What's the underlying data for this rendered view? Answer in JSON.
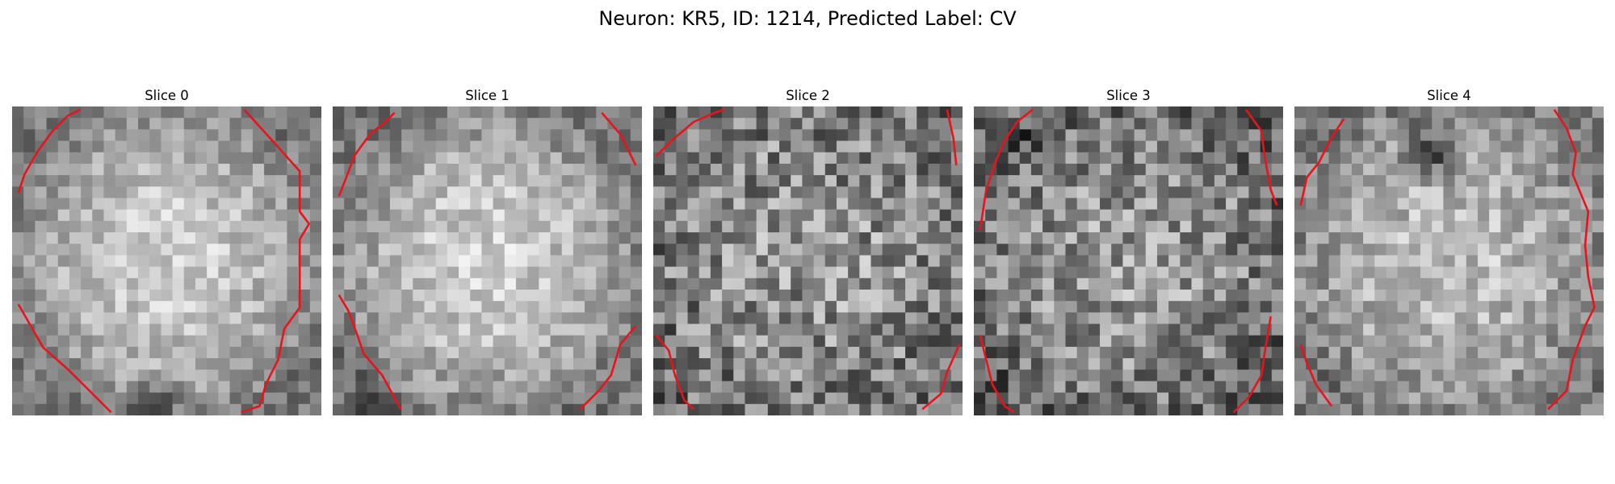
{
  "figure": {
    "title": "Neuron: KR5, ID: 1214, Predicted Label: CV"
  },
  "panels": [
    {
      "title": "Slice 0"
    },
    {
      "title": "Slice 1"
    },
    {
      "title": "Slice 2"
    },
    {
      "title": "Slice 3"
    },
    {
      "title": "Slice 4"
    }
  ],
  "colors": {
    "background": "#ffffff",
    "contour": "#e8141c",
    "colormap": "grayscale"
  }
}
